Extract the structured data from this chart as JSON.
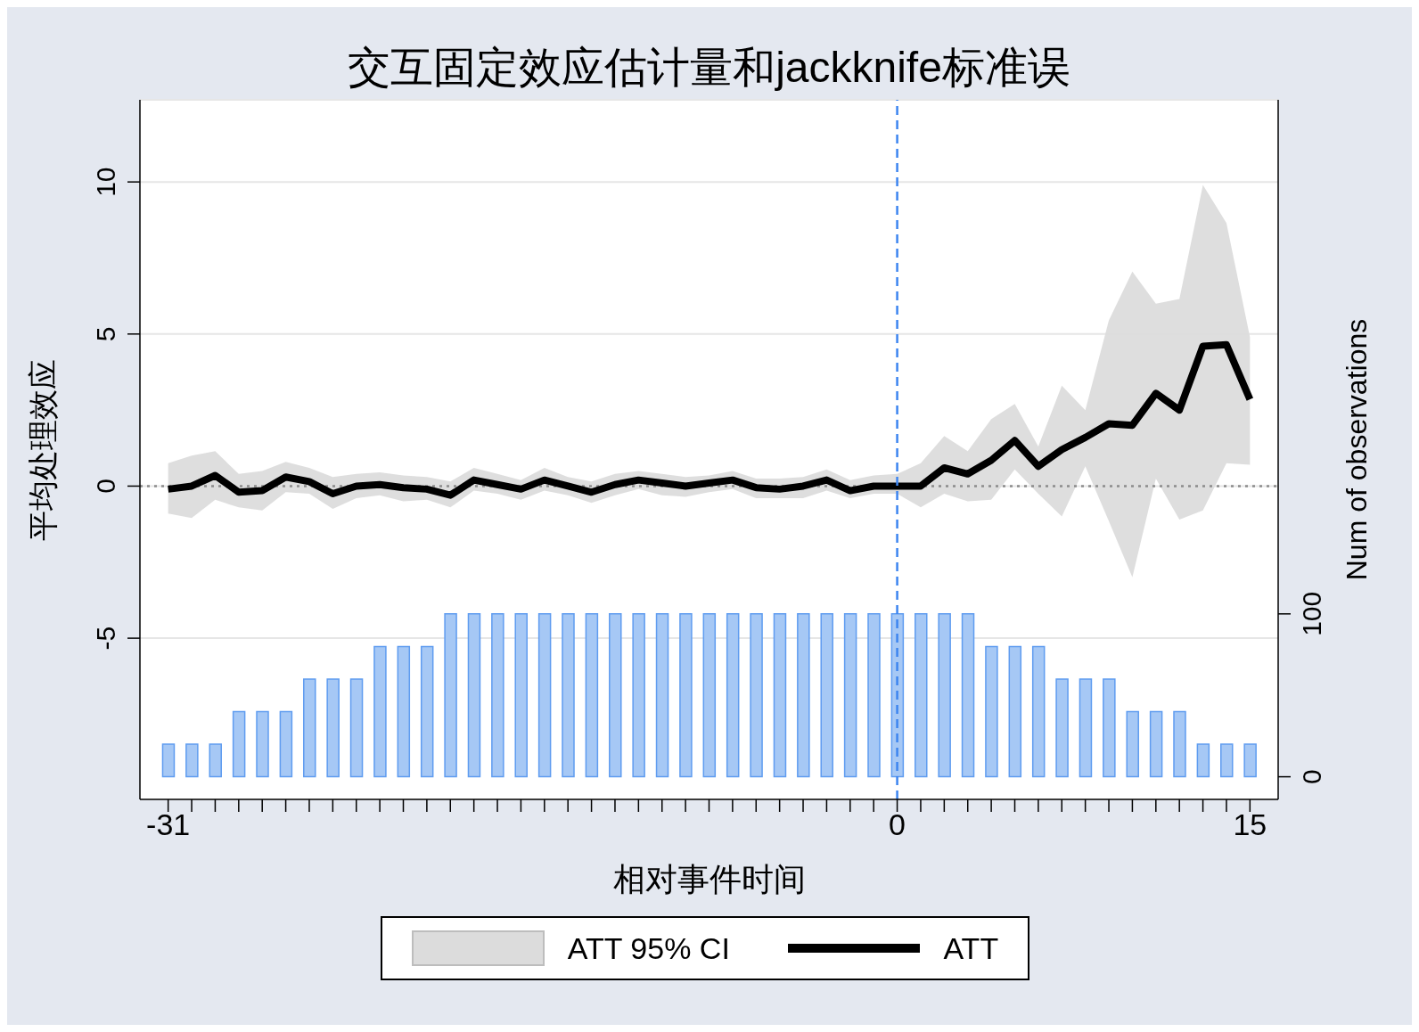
{
  "chart_data": {
    "type": "line",
    "title": "交互固定效应估计量和jackknife标准误",
    "xlabel": "相对事件时间",
    "ylabel": "平均处理效应",
    "y2label": "Num of observations",
    "annotations": [
      "ATT 95% CI"
    ],
    "x": [
      -31,
      -30,
      -29,
      -28,
      -27,
      -26,
      -25,
      -24,
      -23,
      -22,
      -21,
      -20,
      -19,
      -18,
      -17,
      -16,
      -15,
      -14,
      -13,
      -12,
      -11,
      -10,
      -9,
      -8,
      -7,
      -6,
      -5,
      -4,
      -3,
      -2,
      -1,
      0,
      1,
      2,
      3,
      4,
      5,
      6,
      7,
      8,
      9,
      10,
      11,
      12,
      13,
      14,
      15
    ],
    "series": [
      {
        "name": "ATT",
        "color": "#000000",
        "values": [
          -0.1,
          0,
          0.35,
          -0.2,
          -0.15,
          0.3,
          0.15,
          -0.25,
          0,
          0.05,
          -0.05,
          -0.1,
          -0.3,
          0.2,
          0.05,
          -0.1,
          0.2,
          0,
          -0.2,
          0.05,
          0.2,
          0.1,
          0,
          0.1,
          0.2,
          -0.05,
          -0.1,
          0,
          0.2,
          -0.15,
          0,
          0,
          0,
          0.6,
          0.4,
          0.85,
          1.5,
          0.65,
          1.2,
          1.6,
          2.05,
          2.0,
          3.05,
          2.5,
          4.6,
          4.65,
          2.85
        ],
        "lower": [
          -0.9,
          -1.05,
          -0.45,
          -0.7,
          -0.8,
          -0.2,
          -0.25,
          -0.75,
          -0.4,
          -0.3,
          -0.5,
          -0.45,
          -0.7,
          -0.15,
          -0.25,
          -0.45,
          -0.15,
          -0.3,
          -0.55,
          -0.3,
          -0.1,
          -0.3,
          -0.35,
          -0.2,
          -0.1,
          -0.4,
          -0.4,
          -0.4,
          -0.15,
          -0.4,
          -0.25,
          -0.25,
          -0.7,
          -0.25,
          -0.5,
          -0.45,
          0.55,
          -0.25,
          -1.0,
          0.65,
          -1.15,
          -3.0,
          0.25,
          -1.1,
          -0.8,
          0.75,
          0.7
        ],
        "upper": [
          0.75,
          1.0,
          1.15,
          0.4,
          0.5,
          0.8,
          0.6,
          0.3,
          0.4,
          0.45,
          0.35,
          0.3,
          0.15,
          0.6,
          0.4,
          0.2,
          0.6,
          0.3,
          0.15,
          0.4,
          0.5,
          0.4,
          0.3,
          0.35,
          0.5,
          0.25,
          0.25,
          0.3,
          0.55,
          0.2,
          0.35,
          0.4,
          0.75,
          1.65,
          1.15,
          2.2,
          2.7,
          1.3,
          3.3,
          2.5,
          5.45,
          7.05,
          6.0,
          6.15,
          9.9,
          8.65,
          4.9
        ]
      },
      {
        "type": "bar",
        "axis": "y2",
        "color": "#a6c8f5",
        "values": [
          20,
          20,
          20,
          40,
          40,
          40,
          60,
          60,
          60,
          80,
          80,
          80,
          100,
          100,
          100,
          100,
          100,
          100,
          100,
          100,
          100,
          100,
          100,
          100,
          100,
          100,
          100,
          100,
          100,
          100,
          100,
          100,
          100,
          100,
          100,
          80,
          80,
          80,
          60,
          60,
          60,
          40,
          40,
          40,
          20,
          20,
          20
        ]
      }
    ],
    "xlim": [
      -32.2,
      16.2
    ],
    "xticks": [
      {
        "value": -31,
        "label": "-31"
      },
      {
        "value": -30,
        "label": null
      },
      {
        "value": -29,
        "label": null
      },
      {
        "value": -28,
        "label": null
      },
      {
        "value": -27,
        "label": null
      },
      {
        "value": -26,
        "label": null
      },
      {
        "value": -25,
        "label": null
      },
      {
        "value": -24,
        "label": null
      },
      {
        "value": -23,
        "label": null
      },
      {
        "value": -22,
        "label": null
      },
      {
        "value": -21,
        "label": null
      },
      {
        "value": -20,
        "label": null
      },
      {
        "value": -19,
        "label": null
      },
      {
        "value": -18,
        "label": null
      },
      {
        "value": -17,
        "label": null
      },
      {
        "value": -16,
        "label": null
      },
      {
        "value": -15,
        "label": null
      },
      {
        "value": -14,
        "label": null
      },
      {
        "value": -13,
        "label": null
      },
      {
        "value": -12,
        "label": null
      },
      {
        "value": -11,
        "label": null
      },
      {
        "value": -10,
        "label": null
      },
      {
        "value": -9,
        "label": null
      },
      {
        "value": -8,
        "label": null
      },
      {
        "value": -7,
        "label": null
      },
      {
        "value": -6,
        "label": null
      },
      {
        "value": -5,
        "label": null
      },
      {
        "value": -4,
        "label": null
      },
      {
        "value": -3,
        "label": null
      },
      {
        "value": -2,
        "label": null
      },
      {
        "value": -1,
        "label": null
      },
      {
        "value": 0,
        "label": "0"
      },
      {
        "value": 1,
        "label": null
      },
      {
        "value": 2,
        "label": null
      },
      {
        "value": 3,
        "label": null
      },
      {
        "value": 4,
        "label": null
      },
      {
        "value": 5,
        "label": null
      },
      {
        "value": 6,
        "label": null
      },
      {
        "value": 7,
        "label": null
      },
      {
        "value": 8,
        "label": null
      },
      {
        "value": 9,
        "label": null
      },
      {
        "value": 10,
        "label": null
      },
      {
        "value": 11,
        "label": null
      },
      {
        "value": 12,
        "label": null
      },
      {
        "value": 13,
        "label": null
      },
      {
        "value": 14,
        "label": null
      },
      {
        "value": 15,
        "label": "15"
      }
    ],
    "ylim": [
      -10.3,
      12.7
    ],
    "yticks": [
      -5,
      0,
      5,
      10
    ],
    "y2lim": [
      -13.9,
      415.6
    ],
    "y2ticks": [
      0,
      100
    ],
    "ref_lines": [
      {
        "axis": "x",
        "value": 0,
        "color": "#3d85f0",
        "line_style": "dashed"
      },
      {
        "axis": "y",
        "value": 0,
        "color": "#8c8c8c",
        "line_style": "dotted"
      }
    ],
    "grid": "y",
    "legend": "bottom"
  }
}
